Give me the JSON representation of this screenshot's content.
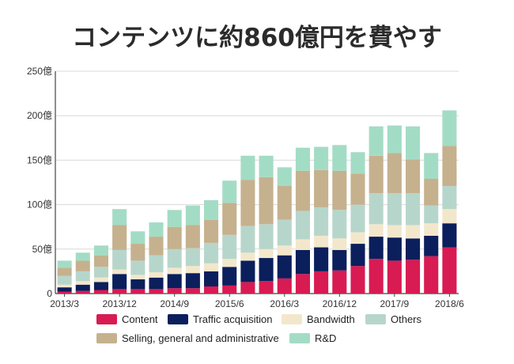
{
  "chart_data": {
    "type": "bar",
    "stacked": true,
    "title": "コンテンツに約860億円を費やす",
    "y_unit": "億",
    "ylim": [
      0,
      250
    ],
    "yticks": [
      0,
      50,
      100,
      150,
      200,
      250
    ],
    "ytick_labels": [
      "0",
      "50億",
      "100億",
      "150億",
      "200億",
      "250億"
    ],
    "categories": [
      "2013/3",
      "2013/6",
      "2013/9",
      "2013/12",
      "2014/3",
      "2014/6",
      "2014/9",
      "2014/12",
      "2015/3",
      "2015/6",
      "2015/9",
      "2015/12",
      "2016/3",
      "2016/6",
      "2016/9",
      "2016/12",
      "2017/3",
      "2017/6",
      "2017/9",
      "2017/12",
      "2018/3",
      "2018/6"
    ],
    "xtick_labels": [
      "2013/3",
      "2013/12",
      "2014/9",
      "2015/6",
      "2016/3",
      "2016/12",
      "2017/9",
      "2018/6"
    ],
    "legend_position": "bottom",
    "grid": true,
    "series": [
      {
        "name": "Content",
        "color": "#d81b53",
        "values": [
          2,
          3,
          4,
          5,
          5,
          5,
          6,
          6,
          8,
          9,
          13,
          14,
          17,
          22,
          25,
          26,
          31,
          39,
          37,
          38,
          42,
          52
        ]
      },
      {
        "name": "Traffic acquisition",
        "color": "#0a1f5c",
        "values": [
          5,
          7,
          9,
          17,
          11,
          13,
          16,
          17,
          17,
          21,
          24,
          26,
          26,
          27,
          27,
          23,
          25,
          25,
          26,
          24,
          23,
          27
        ]
      },
      {
        "name": "Bandwidth",
        "color": "#f3e7cb",
        "values": [
          3,
          4,
          5,
          5,
          5,
          6,
          7,
          8,
          9,
          9,
          9,
          10,
          11,
          12,
          13,
          13,
          13,
          14,
          14,
          15,
          14,
          16
        ]
      },
      {
        "name": "Others",
        "color": "#b7d6cb",
        "values": [
          10,
          11,
          12,
          22,
          16,
          19,
          21,
          20,
          23,
          27,
          30,
          28,
          29,
          32,
          32,
          32,
          31,
          35,
          36,
          36,
          20,
          26
        ]
      },
      {
        "name": "Selling, general and administrative",
        "color": "#c6b18e",
        "values": [
          9,
          12,
          13,
          28,
          19,
          21,
          25,
          26,
          26,
          36,
          52,
          53,
          38,
          45,
          42,
          44,
          35,
          42,
          45,
          38,
          30,
          45
        ]
      },
      {
        "name": "R&D",
        "color": "#a3dcc5",
        "values": [
          8,
          9,
          11,
          18,
          14,
          16,
          19,
          22,
          22,
          25,
          27,
          24,
          21,
          26,
          26,
          29,
          24,
          33,
          31,
          37,
          29,
          40
        ]
      }
    ]
  }
}
